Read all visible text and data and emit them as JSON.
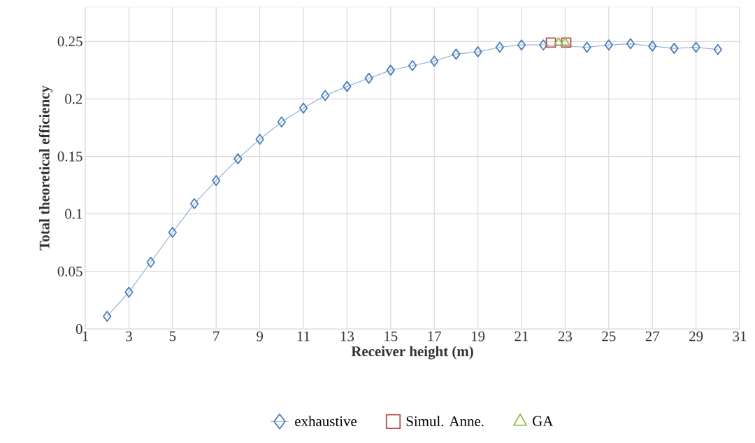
{
  "chart_data": {
    "type": "line",
    "xlabel": "Receiver height (m)",
    "ylabel": "Total theoretical efficiency",
    "xlim": [
      1,
      31
    ],
    "xticks": [
      1,
      3,
      5,
      7,
      9,
      11,
      13,
      15,
      17,
      19,
      21,
      23,
      25,
      27,
      29,
      31
    ],
    "ylim": [
      0,
      0.28
    ],
    "yticks": [
      0,
      0.05,
      0.1,
      0.15,
      0.2,
      0.25
    ],
    "grid": true,
    "legend": "bottom",
    "series": [
      {
        "name": "exhaustive",
        "marker": "diamond",
        "color": "#4a7ebb",
        "x": [
          2,
          3,
          4,
          5,
          6,
          7,
          8,
          9,
          10,
          11,
          12,
          13,
          14,
          15,
          16,
          17,
          18,
          19,
          20,
          21,
          22,
          23,
          24,
          25,
          26,
          27,
          28,
          29,
          30
        ],
        "values": [
          0.011,
          0.032,
          0.058,
          0.084,
          0.109,
          0.129,
          0.148,
          0.165,
          0.18,
          0.192,
          0.203,
          0.211,
          0.218,
          0.225,
          0.229,
          0.233,
          0.239,
          0.241,
          0.245,
          0.247,
          0.247,
          null,
          0.245,
          0.247,
          0.248,
          0.246,
          0.244,
          0.245,
          0.243
        ]
      },
      {
        "name": "Simul. Anne.",
        "type": "scatter",
        "marker": "square",
        "color": "#be4b48",
        "x": [
          22.35,
          23.05
        ],
        "values": [
          0.249,
          0.249
        ]
      },
      {
        "name": "GA",
        "type": "scatter",
        "marker": "triangle",
        "color": "#98b954",
        "x": [
          22.7,
          23.0
        ],
        "values": [
          0.249,
          0.249
        ]
      }
    ]
  }
}
